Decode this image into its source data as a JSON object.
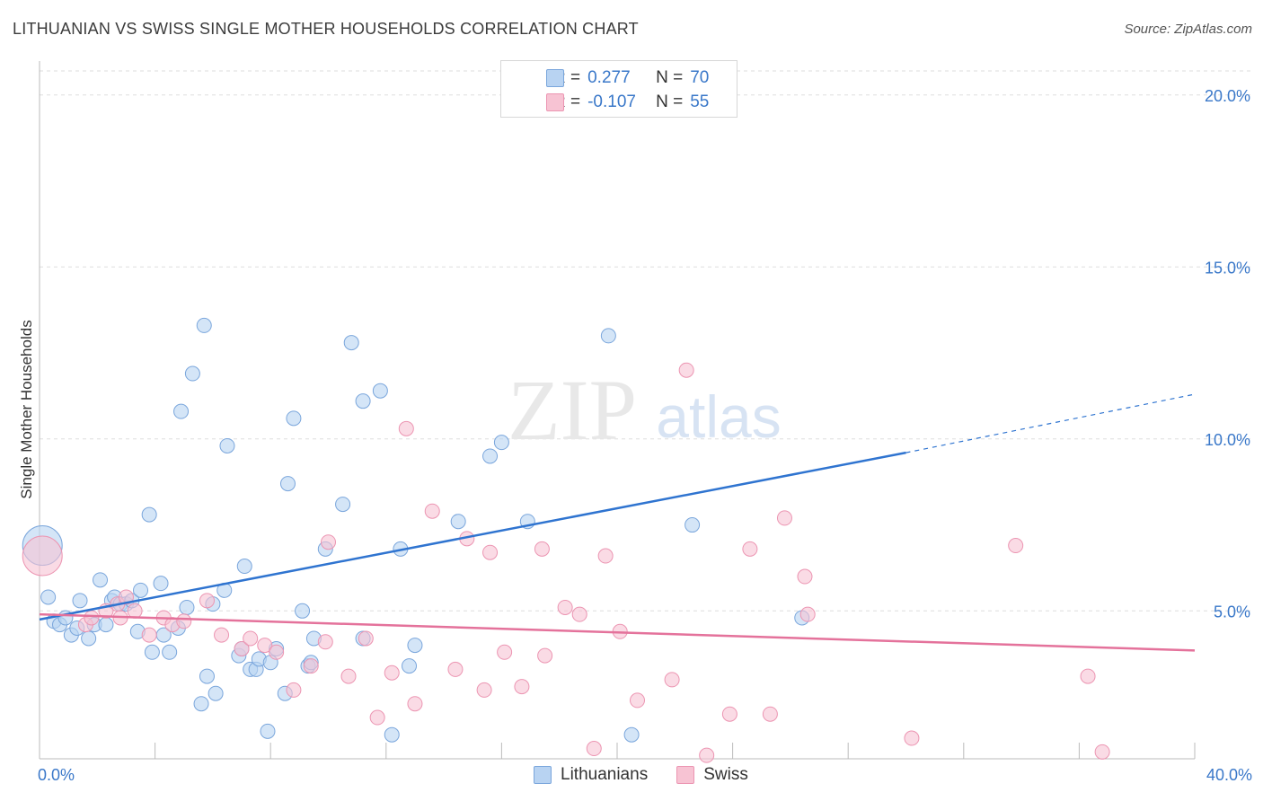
{
  "title": "LITHUANIAN VS SWISS SINGLE MOTHER HOUSEHOLDS CORRELATION CHART",
  "source": "Source: ZipAtlas.com",
  "watermark": {
    "zip": "ZIP",
    "atlas": "atlas"
  },
  "legend": {
    "rows": [
      {
        "r_label": "R =",
        "r_value": "0.277",
        "n_label": "N =",
        "n_value": "70"
      },
      {
        "r_label": "R =",
        "r_value": "-0.107",
        "n_label": "N =",
        "n_value": "55"
      }
    ]
  },
  "bottom_legend": {
    "lithuanians": "Lithuanians",
    "swiss": "Swiss"
  },
  "colors": {
    "lithuanians_fill": "#b8d3f2",
    "lithuanians_stroke": "#7aa6dc",
    "lithuanians_line": "#2f74d0",
    "swiss_fill": "#f7c3d3",
    "swiss_stroke": "#ec95b2",
    "swiss_line": "#e4729b",
    "tick_label": "#3a78c9",
    "grid": "#dddddd"
  },
  "chart_data": {
    "type": "scatter",
    "xlabel": "",
    "ylabel": "Single Mother Households",
    "xlim": [
      0,
      40
    ],
    "ylim": [
      0.7,
      20.7
    ],
    "x_tick_labels": [
      {
        "x": 0,
        "label": "0.0%"
      },
      {
        "x": 40,
        "label": "40.0%"
      }
    ],
    "y_tick_labels": [
      {
        "y": 5,
        "label": "5.0%"
      },
      {
        "y": 10,
        "label": "10.0%"
      },
      {
        "y": 15,
        "label": "15.0%"
      },
      {
        "y": 20,
        "label": "20.0%"
      }
    ],
    "grid": true,
    "series": [
      {
        "name": "Lithuanians",
        "r": 0.277,
        "n": 70,
        "trend": {
          "x0": 0,
          "y0": 4.75,
          "x1": 30.0,
          "y1": 9.6,
          "dash_x1": 40.0,
          "dash_y1": 11.3
        },
        "points": [
          [
            0.1,
            6.9,
            2
          ],
          [
            0.3,
            5.4,
            1
          ],
          [
            0.5,
            4.7,
            1
          ],
          [
            0.7,
            4.6,
            1
          ],
          [
            0.9,
            4.8,
            1
          ],
          [
            1.1,
            4.3,
            1
          ],
          [
            1.3,
            4.5,
            1
          ],
          [
            1.4,
            5.3,
            1
          ],
          [
            1.7,
            4.2,
            1
          ],
          [
            1.9,
            4.6,
            1
          ],
          [
            2.1,
            5.9,
            1
          ],
          [
            2.3,
            4.6,
            1
          ],
          [
            2.5,
            5.3,
            1
          ],
          [
            2.6,
            5.4,
            1
          ],
          [
            2.8,
            5.2,
            1
          ],
          [
            3.0,
            5.2,
            1
          ],
          [
            3.2,
            5.3,
            1
          ],
          [
            3.4,
            4.4,
            1
          ],
          [
            3.5,
            5.6,
            1
          ],
          [
            3.8,
            7.8,
            1
          ],
          [
            3.9,
            3.8,
            1
          ],
          [
            4.2,
            5.8,
            1
          ],
          [
            4.3,
            4.3,
            1
          ],
          [
            4.5,
            3.8,
            1
          ],
          [
            4.8,
            4.5,
            1
          ],
          [
            4.9,
            10.8,
            1
          ],
          [
            5.1,
            5.1,
            1
          ],
          [
            5.3,
            11.9,
            1
          ],
          [
            5.6,
            2.3,
            1
          ],
          [
            5.7,
            13.3,
            1
          ],
          [
            5.8,
            3.1,
            1
          ],
          [
            6.0,
            5.2,
            1
          ],
          [
            6.1,
            2.6,
            1
          ],
          [
            6.4,
            5.6,
            1
          ],
          [
            6.5,
            9.8,
            1
          ],
          [
            6.9,
            3.7,
            1
          ],
          [
            7.0,
            3.9,
            1
          ],
          [
            7.1,
            6.3,
            1
          ],
          [
            7.3,
            3.3,
            1
          ],
          [
            7.5,
            3.3,
            1
          ],
          [
            7.6,
            3.6,
            1
          ],
          [
            7.9,
            1.5,
            1
          ],
          [
            8.0,
            3.5,
            1
          ],
          [
            8.2,
            3.9,
            1
          ],
          [
            8.5,
            2.6,
            1
          ],
          [
            8.6,
            8.7,
            1
          ],
          [
            8.8,
            10.6,
            1
          ],
          [
            9.1,
            5.0,
            1
          ],
          [
            9.3,
            3.4,
            1
          ],
          [
            9.4,
            3.5,
            1
          ],
          [
            9.5,
            4.2,
            1
          ],
          [
            9.9,
            6.8,
            1
          ],
          [
            10.5,
            8.1,
            1
          ],
          [
            10.8,
            12.8,
            1
          ],
          [
            11.2,
            11.1,
            1
          ],
          [
            11.2,
            4.2,
            1
          ],
          [
            11.8,
            11.4,
            1
          ],
          [
            12.2,
            1.4,
            1
          ],
          [
            12.5,
            6.8,
            1
          ],
          [
            12.8,
            3.4,
            1
          ],
          [
            13.0,
            4.0,
            1
          ],
          [
            14.5,
            7.6,
            1
          ],
          [
            15.6,
            9.5,
            1
          ],
          [
            16.0,
            9.9,
            1
          ],
          [
            16.9,
            7.6,
            1
          ],
          [
            17.5,
            20.1,
            1
          ],
          [
            19.7,
            13.0,
            1
          ],
          [
            20.5,
            1.4,
            1
          ],
          [
            22.6,
            7.5,
            1
          ],
          [
            26.4,
            4.8,
            1
          ]
        ]
      },
      {
        "name": "Swiss",
        "r": -0.107,
        "n": 55,
        "trend": {
          "x0": 0,
          "y0": 4.9,
          "x1": 40.0,
          "y1": 3.85
        },
        "points": [
          [
            0.1,
            6.6,
            2
          ],
          [
            1.6,
            4.6,
            1
          ],
          [
            1.8,
            4.8,
            1
          ],
          [
            2.3,
            5.0,
            1
          ],
          [
            2.7,
            5.2,
            1
          ],
          [
            2.8,
            4.8,
            1
          ],
          [
            3.0,
            5.4,
            1
          ],
          [
            3.3,
            5.0,
            1
          ],
          [
            3.8,
            4.3,
            1
          ],
          [
            4.3,
            4.8,
            1
          ],
          [
            4.6,
            4.6,
            1
          ],
          [
            5.0,
            4.7,
            1
          ],
          [
            5.8,
            5.3,
            1
          ],
          [
            6.3,
            4.3,
            1
          ],
          [
            7.0,
            3.9,
            1
          ],
          [
            7.3,
            4.2,
            1
          ],
          [
            7.8,
            4.0,
            1
          ],
          [
            8.2,
            3.8,
            1
          ],
          [
            8.8,
            2.7,
            1
          ],
          [
            9.4,
            3.4,
            1
          ],
          [
            9.9,
            4.1,
            1
          ],
          [
            10.0,
            7.0,
            1
          ],
          [
            10.7,
            3.1,
            1
          ],
          [
            11.3,
            4.2,
            1
          ],
          [
            11.7,
            1.9,
            1
          ],
          [
            12.2,
            3.2,
            1
          ],
          [
            12.7,
            10.3,
            1
          ],
          [
            13.0,
            2.3,
            1
          ],
          [
            13.6,
            7.9,
            1
          ],
          [
            14.4,
            3.3,
            1
          ],
          [
            14.8,
            7.1,
            1
          ],
          [
            15.4,
            2.7,
            1
          ],
          [
            15.6,
            6.7,
            1
          ],
          [
            16.1,
            3.8,
            1
          ],
          [
            16.7,
            2.8,
            1
          ],
          [
            17.4,
            6.8,
            1
          ],
          [
            17.5,
            3.7,
            1
          ],
          [
            18.2,
            5.1,
            1
          ],
          [
            18.7,
            4.9,
            1
          ],
          [
            19.2,
            1.0,
            1
          ],
          [
            19.6,
            6.6,
            1
          ],
          [
            20.1,
            4.4,
            1
          ],
          [
            20.7,
            2.4,
            1
          ],
          [
            21.9,
            3.0,
            1
          ],
          [
            22.4,
            12.0,
            1
          ],
          [
            23.1,
            0.8,
            1
          ],
          [
            23.9,
            2.0,
            1
          ],
          [
            24.6,
            6.8,
            1
          ],
          [
            25.3,
            2.0,
            1
          ],
          [
            25.8,
            7.7,
            1
          ],
          [
            26.5,
            6.0,
            1
          ],
          [
            26.6,
            4.9,
            1
          ],
          [
            30.2,
            1.3,
            1
          ],
          [
            33.8,
            6.9,
            1
          ],
          [
            36.3,
            3.1,
            1
          ],
          [
            36.8,
            0.9,
            1
          ]
        ]
      }
    ]
  }
}
